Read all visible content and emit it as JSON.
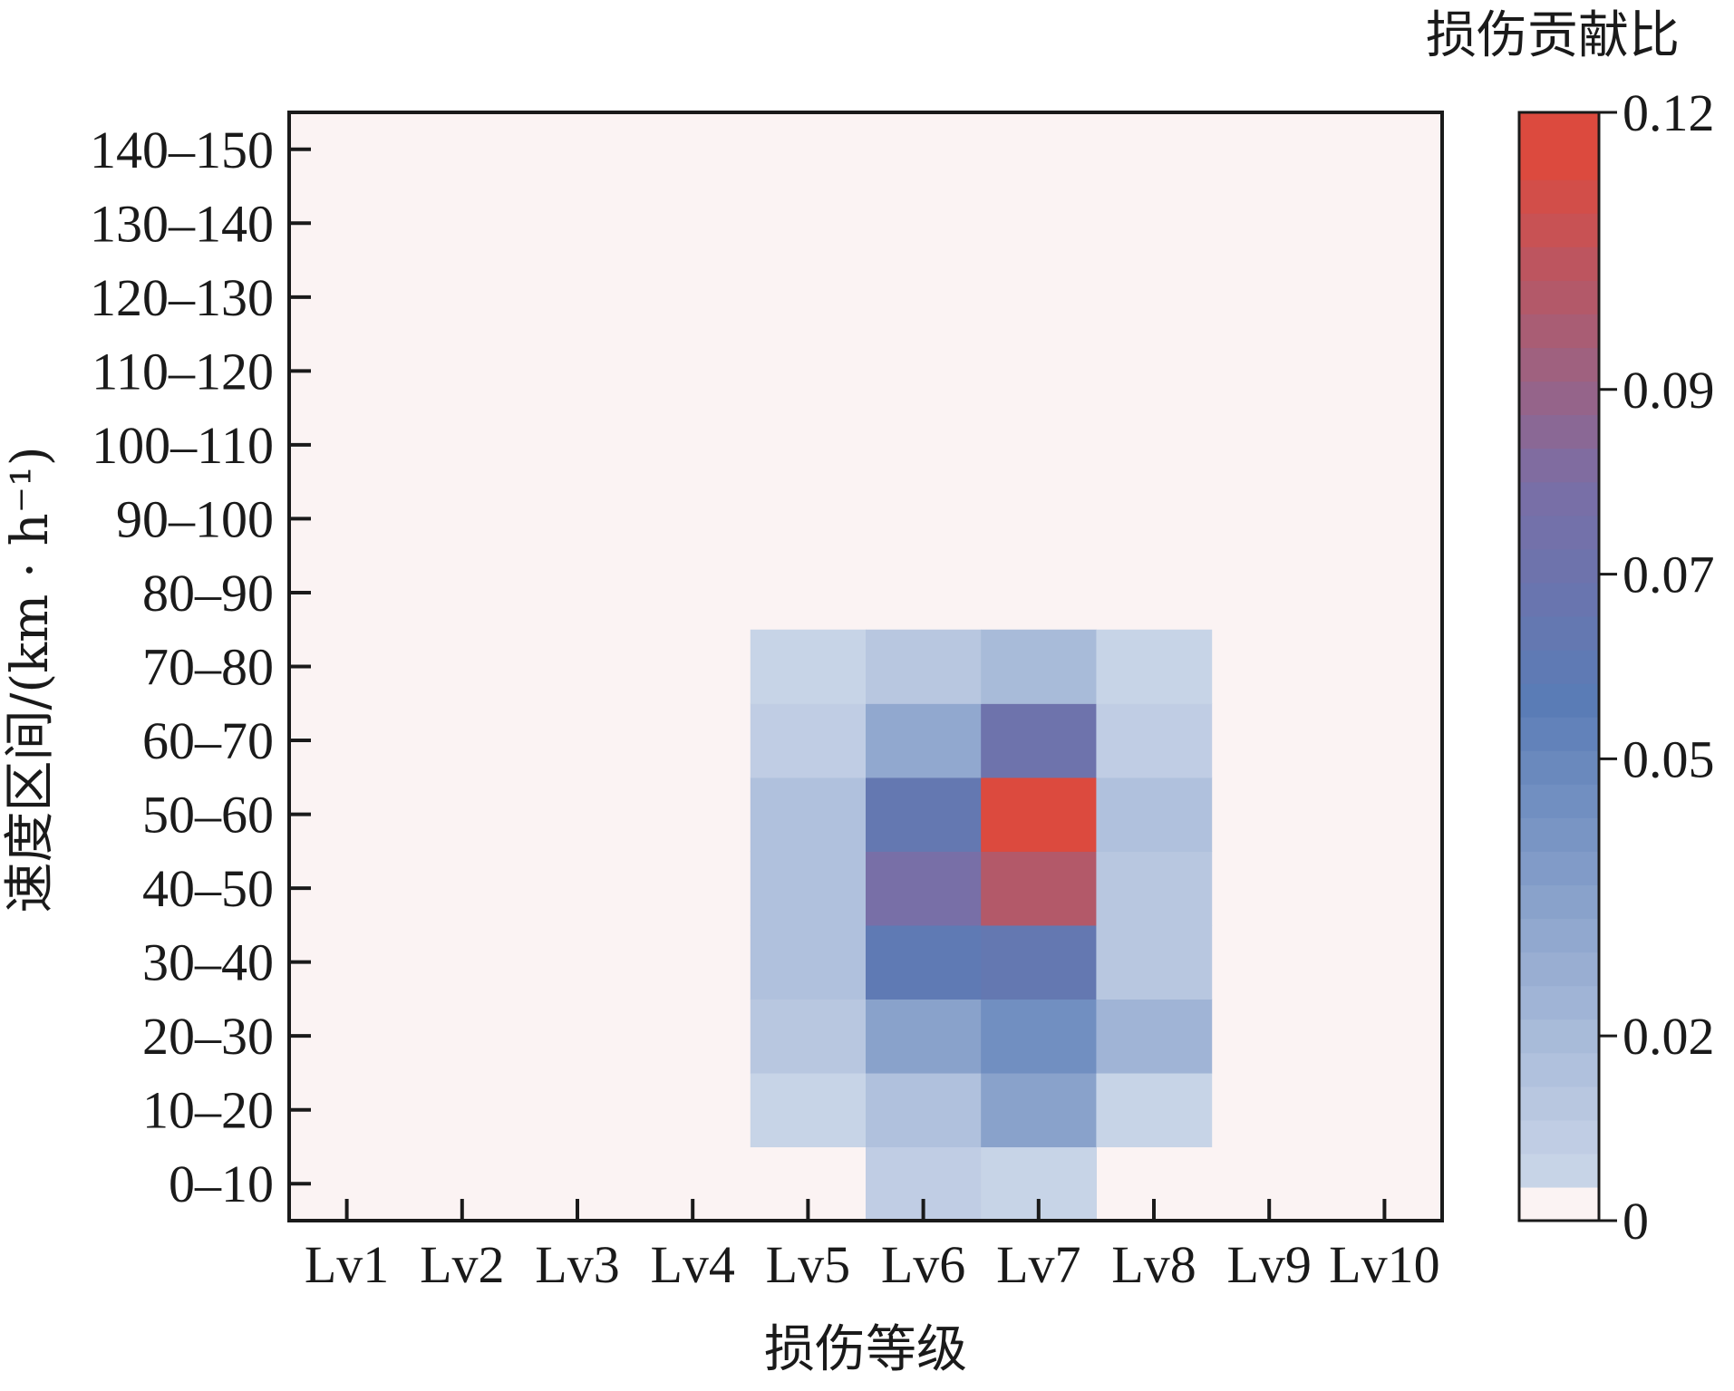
{
  "chart_data": {
    "type": "heatmap",
    "xlabel": "损伤等级",
    "ylabel": "速度区间/(km · h⁻¹)",
    "x_categories": [
      "Lv1",
      "Lv2",
      "Lv3",
      "Lv4",
      "Lv5",
      "Lv6",
      "Lv7",
      "Lv8",
      "Lv9",
      "Lv10"
    ],
    "y_categories": [
      "0–10",
      "10–20",
      "20–30",
      "30–40",
      "40–50",
      "50–60",
      "60–70",
      "70–80",
      "80–90",
      "90–100",
      "100–110",
      "110–120",
      "120–130",
      "130–140",
      "140–150"
    ],
    "values": [
      [
        0,
        0,
        0,
        0,
        0,
        0.01,
        0.006,
        0,
        0,
        0
      ],
      [
        0,
        0,
        0,
        0,
        0.006,
        0.016,
        0.035,
        0.007,
        0,
        0
      ],
      [
        0,
        0,
        0,
        0,
        0.012,
        0.034,
        0.048,
        0.026,
        0,
        0
      ],
      [
        0,
        0,
        0,
        0,
        0.018,
        0.062,
        0.066,
        0.012,
        0,
        0
      ],
      [
        0,
        0,
        0,
        0,
        0.018,
        0.082,
        0.104,
        0.012,
        0,
        0
      ],
      [
        0,
        0,
        0,
        0,
        0.018,
        0.064,
        0.12,
        0.018,
        0,
        0
      ],
      [
        0,
        0,
        0,
        0,
        0.01,
        0.032,
        0.074,
        0.01,
        0,
        0
      ],
      [
        0,
        0,
        0,
        0,
        0.006,
        0.014,
        0.02,
        0.006,
        0,
        0
      ],
      [
        0,
        0,
        0,
        0,
        0,
        0,
        0,
        0,
        0,
        0
      ],
      [
        0,
        0,
        0,
        0,
        0,
        0,
        0,
        0,
        0,
        0
      ],
      [
        0,
        0,
        0,
        0,
        0,
        0,
        0,
        0,
        0,
        0
      ],
      [
        0,
        0,
        0,
        0,
        0,
        0,
        0,
        0,
        0,
        0
      ],
      [
        0,
        0,
        0,
        0,
        0,
        0,
        0,
        0,
        0,
        0
      ],
      [
        0,
        0,
        0,
        0,
        0,
        0,
        0,
        0,
        0,
        0
      ],
      [
        0,
        0,
        0,
        0,
        0,
        0,
        0,
        0,
        0,
        0
      ]
    ],
    "colorbar": {
      "title": "损伤贡献比",
      "range": [
        0,
        0.12
      ],
      "tick_values": [
        0,
        0.02,
        0.05,
        0.07,
        0.09,
        0.12
      ],
      "tick_labels": [
        "0",
        "0.02",
        "0.05",
        "0.07",
        "0.09",
        "0.12"
      ],
      "levels": 33
    },
    "colors": {
      "zero": "#fbf3f3",
      "low": "#d7e0ee",
      "mid": "#5a7cb6",
      "purple": "#7a6ea6",
      "high": "#dc4a3e"
    }
  }
}
